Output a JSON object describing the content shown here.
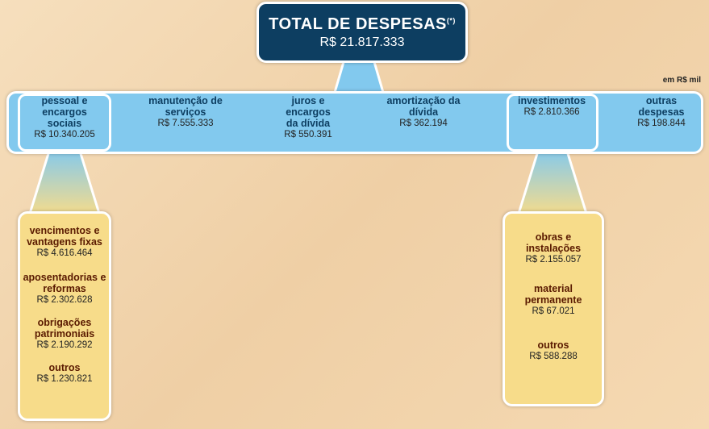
{
  "header": {
    "title": "TOTAL DE DESPESAS",
    "note": "(*)",
    "value": "R$ 21.817.333"
  },
  "unit": "em R$ mil",
  "categories": [
    {
      "label": "pessoal e encargos sociais",
      "value": "R$ 10.340.205"
    },
    {
      "label": "manutenção de serviços",
      "value": "R$ 7.555.333"
    },
    {
      "label": "juros e encargos da dívida",
      "value": "R$ 550.391"
    },
    {
      "label": "amortização da dívida",
      "value": "R$ 362.194"
    },
    {
      "label": "investimentos",
      "value": "R$ 2.810.366"
    },
    {
      "label": "outras despesas",
      "value": "R$ 198.844"
    }
  ],
  "breakdowns": [
    {
      "items": [
        {
          "label": "vencimentos e vantagens fixas",
          "value": "R$ 4.616.464"
        },
        {
          "label": "aposentadorias e reformas",
          "value": "R$ 2.302.628"
        },
        {
          "label": "obrigações patrimoniais",
          "value": "R$ 2.190.292"
        },
        {
          "label": "outros",
          "value": "R$ 1.230.821"
        }
      ]
    },
    {
      "items": [
        {
          "label": "obras e instalações",
          "value": "R$ 2.155.057"
        },
        {
          "label": "material permanente",
          "value": "R$ 67.021"
        },
        {
          "label": "outros",
          "value": "R$ 588.288"
        }
      ]
    }
  ]
}
